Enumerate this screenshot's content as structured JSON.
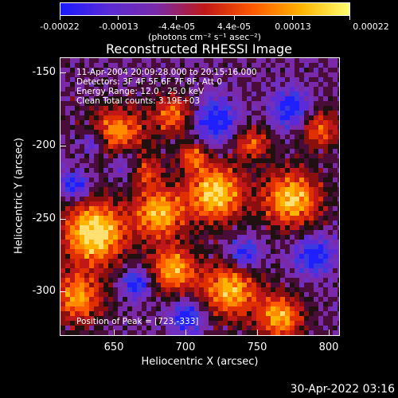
{
  "colorbar": {
    "tick_labels": [
      "-0.00022",
      "-0.00013",
      "-4.4e-05",
      "4.4e-05",
      "0.00013",
      "0.00022"
    ],
    "units": "(photons cm⁻² s⁻¹ asec⁻²)",
    "colors": [
      "#1a1aff",
      "#5a2bd6",
      "#7a2aa8",
      "#c01818",
      "#ff5a00",
      "#ffb400",
      "#ffff70"
    ]
  },
  "plot": {
    "title": "Reconstructed RHESSI Image",
    "info_lines": [
      "11-Apr-2004 20:09:28.000 to 20:15:16.000",
      "Detectors: 3F 4F 5F 6F 7F 8F, Att 0",
      "Energy Range: 12.0 - 25.0 keV",
      "Clean     Total counts: 3.19E+03"
    ],
    "peak_text": "Position of Peak = [723,-333]",
    "x_axis_title": "Heliocentric X (arcsec)",
    "y_axis_title": "Heliocentric Y (arcsec)",
    "x_ticks": [
      "650",
      "700",
      "750",
      "800"
    ],
    "y_ticks": [
      "-150",
      "-200",
      "-250",
      "-300"
    ],
    "x_range": [
      613,
      808
    ],
    "y_range": [
      -333,
      -138
    ]
  },
  "footer": {
    "date": "30-Apr-2022 03:16"
  }
}
